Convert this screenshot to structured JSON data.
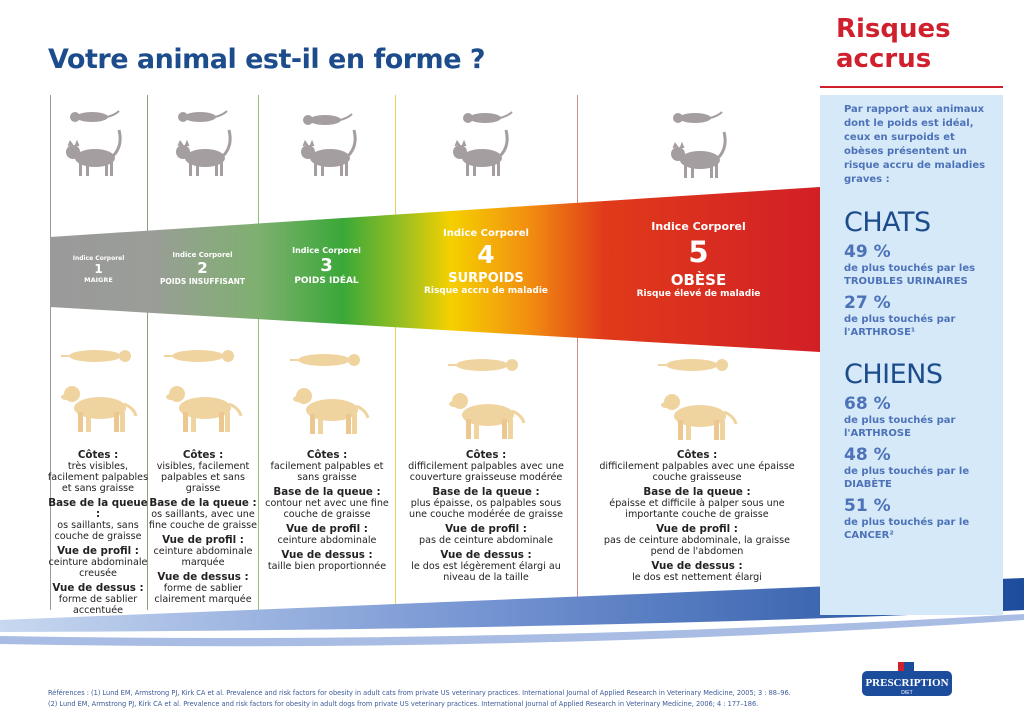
{
  "title": "Votre animal est-il en forme ?",
  "risk": {
    "title_line1": "Risques",
    "title_line2": "accrus",
    "intro": "Par rapport aux animaux dont le poids est idéal, ceux en surpoids et obèses présentent un risque accru de maladies graves :",
    "cats": {
      "label": "CHATS",
      "stats": [
        {
          "pct": "49 %",
          "desc": "de plus touchés par les TROUBLES URINAIRES"
        },
        {
          "pct": "27 %",
          "desc": "de plus touchés par l'ARTHROSE¹"
        }
      ]
    },
    "dogs": {
      "label": "CHIENS",
      "stats": [
        {
          "pct": "68 %",
          "desc": "de plus touchés par l'ARTHROSE"
        },
        {
          "pct": "48 %",
          "desc": "de plus touchés par le DIABÈTE"
        },
        {
          "pct": "51 %",
          "desc": "de plus touchés par le CANCER²"
        }
      ]
    }
  },
  "levels": [
    {
      "index_label": "Indice Corporel",
      "number": "1",
      "name": "MAIGRE",
      "sub": "",
      "ribs_h": "Côtes :",
      "ribs": "très visibles, facilement palpables et sans graisse",
      "tail_h": "Base de la queue :",
      "tail": "os saillants, sans couche de graisse",
      "profile_h": "Vue de profil :",
      "profile": "ceinture abdominale creusée",
      "top_h": "Vue de dessus :",
      "top": "forme de sablier accentuée"
    },
    {
      "index_label": "Indice Corporel",
      "number": "2",
      "name": "POIDS INSUFFISANT",
      "sub": "",
      "ribs_h": "Côtes :",
      "ribs": "visibles, facilement palpables et sans graisse",
      "tail_h": "Base de la queue :",
      "tail": "os saillants, avec une fine couche de graisse",
      "profile_h": "Vue de profil :",
      "profile": "ceinture abdominale marquée",
      "top_h": "Vue de dessus :",
      "top": "forme de sablier clairement marquée"
    },
    {
      "index_label": "Indice Corporel",
      "number": "3",
      "name": "POIDS IDÉAL",
      "sub": "",
      "ribs_h": "Côtes :",
      "ribs": "facilement palpables et sans graisse",
      "tail_h": "Base de la queue :",
      "tail": "contour net avec une fine couche de graisse",
      "profile_h": "Vue de profil :",
      "profile": "ceinture abdominale",
      "top_h": "Vue de dessus :",
      "top": "taille bien proportionnée"
    },
    {
      "index_label": "Indice Corporel",
      "number": "4",
      "name": "SURPOIDS",
      "sub": "Risque accru de maladie",
      "ribs_h": "Côtes :",
      "ribs": "difficilement palpables avec une couverture graisseuse modérée",
      "tail_h": "Base de la queue :",
      "tail": "plus épaisse, os palpables sous une couche modérée de graisse",
      "profile_h": "Vue de profil :",
      "profile": "pas de ceinture abdominale",
      "top_h": "Vue de dessus :",
      "top": "le dos est légèrement élargi au niveau de la taille"
    },
    {
      "index_label": "Indice Corporel",
      "number": "5",
      "name": "OBÈSE",
      "sub": "Risque élevé de maladie",
      "ribs_h": "Côtes :",
      "ribs": "difficilement palpables avec une épaisse couche graisseuse",
      "tail_h": "Base de la queue :",
      "tail": "épaisse et difficile à palper sous une importante couche de graisse",
      "profile_h": "Vue de profil :",
      "profile": "pas de ceinture abdominale, la graisse pend de l'abdomen",
      "top_h": "Vue de dessus :",
      "top": "le dos est nettement élargi"
    }
  ],
  "references": {
    "line1": "Références : (1) Lund EM, Armstrong PJ, Kirk CA et al. Prevalence and risk factors for obesity in adult cats from private US veterinary practices. International Journal of Applied Research in Veterinary Medicine, 2005; 3 : 88–96.",
    "line2": "(2) Lund EM, Armstrong PJ, Kirk CA et al. Prevalence and risk factors for obesity in adult dogs from private US veterinary practices. International Journal of Applied Research in Veterinary Medicine, 2006; 4 : 177–186."
  },
  "logo": {
    "brand": "Hill's",
    "name": "PRESCRIPTION",
    "sub": "DIET"
  },
  "colors": {
    "title_blue": "#1c4c8c",
    "risk_red": "#d0202e",
    "panel_bg": "#d5e9f8"
  }
}
